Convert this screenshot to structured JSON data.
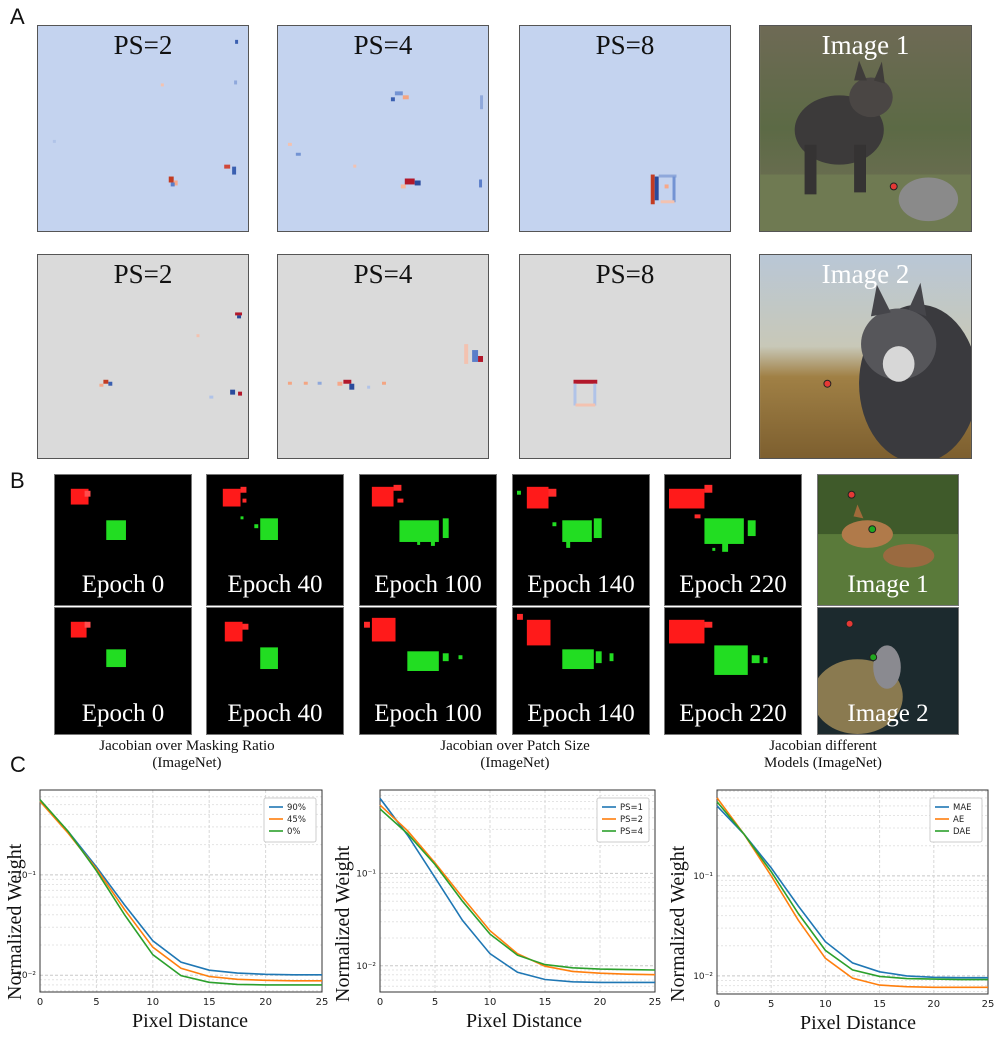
{
  "panels": {
    "a": "A",
    "b": "B",
    "c": "C"
  },
  "panel_a": {
    "rows": [
      {
        "titles": [
          "PS=2",
          "PS=4",
          "PS=8"
        ],
        "image_title": "Image 1",
        "bg": "#c4d3ef"
      },
      {
        "titles": [
          "PS=2",
          "PS=4",
          "PS=8"
        ],
        "image_title": "Image 2",
        "bg": "#dadada"
      }
    ]
  },
  "panel_b": {
    "rows": [
      {
        "labels": [
          "Epoch 0",
          "Epoch 40",
          "Epoch 100",
          "Epoch 140",
          "Epoch 220"
        ],
        "image_title": "Image 1"
      },
      {
        "labels": [
          "Epoch 0",
          "Epoch 40",
          "Epoch 100",
          "Epoch 140",
          "Epoch 220"
        ],
        "image_title": "Image 2"
      }
    ],
    "captions": [
      "Jacobian over Masking Ratio (ImageNet)",
      "Jacobian over Patch Size (ImageNet)",
      "Jacobian different Models (ImageNet)"
    ]
  },
  "chart_data": [
    {
      "type": "line",
      "xlabel": "Pixel Distance",
      "ylabel": "Normalized Weight",
      "yscale": "log",
      "xlim": [
        0,
        25
      ],
      "ylim": [
        0.0068,
        0.7
      ],
      "xticks": [
        "0",
        "5",
        "10",
        "15",
        "20",
        "25"
      ],
      "yticks": [
        {
          "value": 0.1,
          "label": "10⁻¹"
        },
        {
          "value": 0.01,
          "label": "10⁻²"
        }
      ],
      "legend": "top-right",
      "grid": true,
      "series": [
        {
          "name": "90%",
          "color": "#1f77b4",
          "x": [
            0,
            2.5,
            5,
            7.5,
            10,
            12.5,
            15,
            17.5,
            20,
            22.5,
            25
          ],
          "y": [
            0.55,
            0.27,
            0.12,
            0.05,
            0.022,
            0.0135,
            0.0112,
            0.0105,
            0.0102,
            0.0101,
            0.0101
          ]
        },
        {
          "name": "45%",
          "color": "#ff7f0e",
          "x": [
            0,
            2.5,
            5,
            7.5,
            10,
            12.5,
            15,
            17.5,
            20,
            22.5,
            25
          ],
          "y": [
            0.54,
            0.26,
            0.115,
            0.045,
            0.019,
            0.0117,
            0.0097,
            0.0091,
            0.0089,
            0.0088,
            0.0088
          ]
        },
        {
          "name": "0%",
          "color": "#2ca02c",
          "x": [
            0,
            2.5,
            5,
            7.5,
            10,
            12.5,
            15,
            17.5,
            20,
            22.5,
            25
          ],
          "y": [
            0.56,
            0.27,
            0.11,
            0.04,
            0.016,
            0.0099,
            0.0085,
            0.0081,
            0.008,
            0.008,
            0.008
          ]
        }
      ]
    },
    {
      "type": "line",
      "xlabel": "Pixel Distance",
      "ylabel": "Normalized Weight",
      "yscale": "log",
      "xlim": [
        0,
        25
      ],
      "ylim": [
        0.0052,
        0.8
      ],
      "xticks": [
        "0",
        "5",
        "10",
        "15",
        "20",
        "25"
      ],
      "yticks": [
        {
          "value": 0.1,
          "label": "10⁻¹"
        },
        {
          "value": 0.01,
          "label": "10⁻²"
        }
      ],
      "legend": "top-right",
      "grid": true,
      "series": [
        {
          "name": "PS=1",
          "color": "#1f77b4",
          "x": [
            0,
            2.5,
            5,
            7.5,
            10,
            12.5,
            15,
            17.5,
            20,
            22.5,
            25
          ],
          "y": [
            0.65,
            0.26,
            0.09,
            0.031,
            0.0135,
            0.0085,
            0.0071,
            0.0067,
            0.0066,
            0.0066,
            0.0066
          ]
        },
        {
          "name": "PS=2",
          "color": "#ff7f0e",
          "x": [
            0,
            2.5,
            5,
            7.5,
            10,
            12.5,
            15,
            17.5,
            20,
            22.5,
            25
          ],
          "y": [
            0.55,
            0.29,
            0.13,
            0.055,
            0.024,
            0.0135,
            0.0099,
            0.0087,
            0.0083,
            0.0081,
            0.008
          ]
        },
        {
          "name": "PS=4",
          "color": "#2ca02c",
          "x": [
            0,
            2.5,
            5,
            7.5,
            10,
            12.5,
            15,
            17.5,
            20,
            22.5,
            25
          ],
          "y": [
            0.5,
            0.27,
            0.125,
            0.05,
            0.022,
            0.013,
            0.0103,
            0.0095,
            0.0092,
            0.0091,
            0.009
          ]
        }
      ]
    },
    {
      "type": "line",
      "xlabel": "Pixel Distance",
      "ylabel": "Normalized Weight",
      "yscale": "log",
      "xlim": [
        0,
        25
      ],
      "ylim": [
        0.0066,
        0.72
      ],
      "xticks": [
        "0",
        "5",
        "10",
        "15",
        "20",
        "25"
      ],
      "yticks": [
        {
          "value": 0.1,
          "label": "10⁻¹"
        },
        {
          "value": 0.01,
          "label": "10⁻²"
        }
      ],
      "legend": "top-right",
      "grid": true,
      "series": [
        {
          "name": "MAE",
          "color": "#1f77b4",
          "x": [
            0,
            2.5,
            5,
            7.5,
            10,
            12.5,
            15,
            17.5,
            20,
            22.5,
            25
          ],
          "y": [
            0.5,
            0.26,
            0.12,
            0.05,
            0.022,
            0.0135,
            0.011,
            0.01,
            0.0097,
            0.0096,
            0.0096
          ]
        },
        {
          "name": "AE",
          "color": "#ff7f0e",
          "x": [
            0,
            2.5,
            5,
            7.5,
            10,
            12.5,
            15,
            17.5,
            20,
            22.5,
            25
          ],
          "y": [
            0.6,
            0.26,
            0.1,
            0.036,
            0.015,
            0.0095,
            0.0081,
            0.0078,
            0.0077,
            0.0077,
            0.0077
          ]
        },
        {
          "name": "DAE",
          "color": "#2ca02c",
          "x": [
            0,
            2.5,
            5,
            7.5,
            10,
            12.5,
            15,
            17.5,
            20,
            22.5,
            25
          ],
          "y": [
            0.55,
            0.26,
            0.11,
            0.042,
            0.018,
            0.0115,
            0.0099,
            0.0094,
            0.0093,
            0.0092,
            0.0092
          ]
        }
      ]
    }
  ]
}
